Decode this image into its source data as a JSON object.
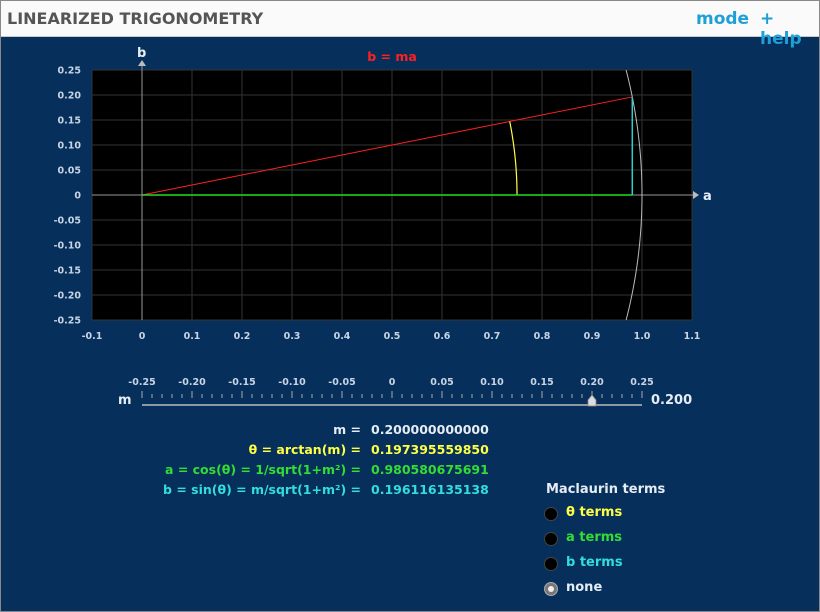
{
  "header": {
    "title": "LINEARIZED TRIGONOMETRY",
    "mode_label": "mode",
    "help_label": "+ help"
  },
  "graph": {
    "line_label": "b = ma",
    "x_axis_name": "a",
    "y_axis_name": "b",
    "x_ticks": [
      "-0.1",
      "0",
      "0.1",
      "0.2",
      "0.3",
      "0.4",
      "0.5",
      "0.6",
      "0.7",
      "0.8",
      "0.9",
      "1.0",
      "1.1"
    ],
    "y_ticks": [
      "0.25",
      "0.20",
      "0.15",
      "0.10",
      "0.05",
      "0",
      "-0.05",
      "-0.10",
      "-0.15",
      "-0.20",
      "-0.25"
    ],
    "x_range": [
      -0.1,
      1.1
    ],
    "y_range": [
      -0.25,
      0.25
    ],
    "slope_m": 0.2,
    "theta_arc_radius": 0.75,
    "colors": {
      "line": "#ff2020",
      "theta": "#ffff44",
      "a": "#22dd22",
      "b": "#33cccc",
      "unit_circle": "#bbbbbb",
      "plot_bg": "#000000",
      "app_bg": "#06305b"
    }
  },
  "slider": {
    "name": "m",
    "ticks": [
      "-0.25",
      "-0.20",
      "-0.15",
      "-0.10",
      "-0.05",
      "0",
      "0.05",
      "0.10",
      "0.15",
      "0.20",
      "0.25"
    ],
    "min": -0.25,
    "max": 0.25,
    "value": 0.2,
    "value_text": "0.200"
  },
  "readouts": [
    {
      "label": "m =",
      "value": "0.200000000000",
      "color": "#e6ecf4",
      "name": "m"
    },
    {
      "label": "θ = arctan(m) =",
      "value": "0.197395559850",
      "color": "#ffff44",
      "name": "theta"
    },
    {
      "label": "a = cos(θ) = 1/sqrt(1+m²) =",
      "value": "0.980580675691",
      "color": "#33dd33",
      "name": "a"
    },
    {
      "label": "b = sin(θ) = m/sqrt(1+m²) =",
      "value": "0.196116135138",
      "color": "#33dddd",
      "name": "b"
    }
  ],
  "maclaurin": {
    "title": "Maclaurin terms",
    "options": [
      {
        "label": "θ terms",
        "color": "#ffff44",
        "selected": false
      },
      {
        "label": "a terms",
        "color": "#33dd33",
        "selected": false
      },
      {
        "label": "b terms",
        "color": "#33dddd",
        "selected": false
      },
      {
        "label": "none",
        "color": "#e6ecf4",
        "selected": true
      }
    ]
  }
}
